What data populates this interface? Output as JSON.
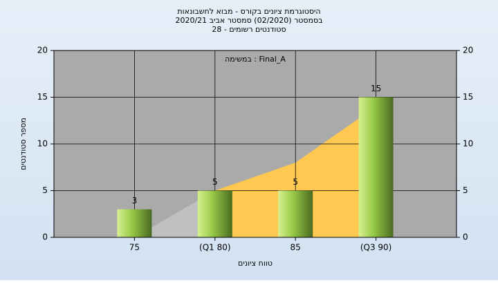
{
  "chart_data": {
    "type": "bar",
    "title": "היסטוגרמת ציונים בקורס - מבוא לחשבונאות",
    "subtitle": "בסמסטר  (02/2020)  סמסטר אביב 2020/21",
    "subtitle2": "סטודנטים רשומים - 28",
    "annotation": "במשימה : Final_A",
    "x_label": "טווח ציונים",
    "y_label": "מספר סטודנטים",
    "categories": [
      "75",
      "(Q1 80)",
      "85",
      "(Q3 90)"
    ],
    "series": [
      {
        "color": "#9acd4a",
        "values": [
          3,
          5,
          5,
          15
        ]
      }
    ],
    "areas": [
      {
        "color": "#c0c0c0",
        "values": [
          0,
          5,
          null,
          null
        ]
      },
      {
        "color": "#ffc850",
        "values": [
          null,
          5,
          8,
          14
        ]
      }
    ],
    "ylim": [
      0,
      20
    ],
    "yticks": [
      0,
      5,
      10,
      15,
      20
    ],
    "y2lim": [
      0,
      20
    ],
    "y2ticks": [
      0,
      5,
      10,
      15,
      20
    ],
    "grid": true
  }
}
